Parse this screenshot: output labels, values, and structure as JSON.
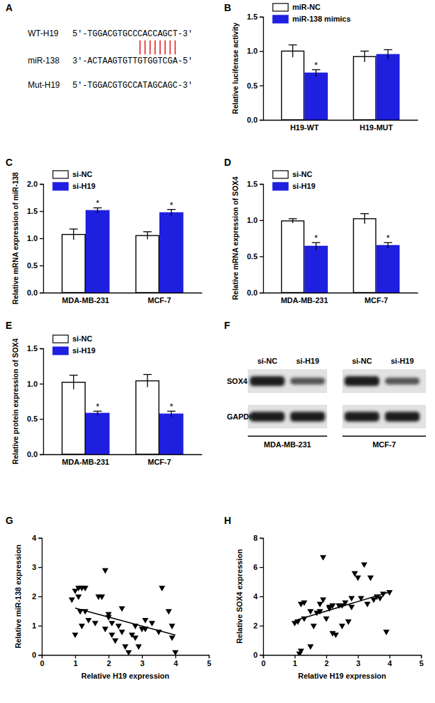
{
  "chart_data": [
    {
      "type": "sequence",
      "panel_label": "A",
      "rows": [
        {
          "name": "WT-H19",
          "sequence": "5'-TGGACGTGCCCACCAGCT-3'"
        },
        {
          "name": "miR-138",
          "sequence": "3'-ACTAAGTGTTGTGGTCGA-5'"
        },
        {
          "name": "Mut-H19",
          "sequence": "5'-TGGACGTGCCATAGCAGC-3'"
        }
      ],
      "seed_pairs": [
        10,
        11,
        12,
        13,
        14,
        15,
        16,
        17
      ],
      "color": "#e02020"
    },
    {
      "type": "bar",
      "panel_label": "B",
      "y_label": "Relative luciferase activity",
      "categories": [
        "H19-WT",
        "H19-MUT"
      ],
      "series": [
        {
          "name": "miR-NC",
          "color": "#ffffff",
          "values": [
            1.0,
            0.92
          ],
          "errors": [
            0.09,
            0.08
          ]
        },
        {
          "name": "miR-138 mimics",
          "color": "#1f1fe0",
          "values": [
            0.68,
            0.95
          ],
          "errors": [
            0.05,
            0.07
          ]
        }
      ],
      "annotations": [
        {
          "text": "*",
          "series": 1,
          "category": 0
        }
      ],
      "ylim": [
        0,
        1.5
      ],
      "yticks": [
        {
          "value": 0,
          "label": "0.0"
        },
        0.5,
        {
          "value": 1,
          "label": "1.0"
        },
        1.5
      ],
      "legend": "upper left"
    },
    {
      "type": "bar",
      "panel_label": "C",
      "y_label": "Relative mRNA expression of miR-138",
      "categories": [
        "MDA-MB-231",
        "MCF-7"
      ],
      "series": [
        {
          "name": "si-NC",
          "color": "#ffffff",
          "values": [
            1.07,
            1.05
          ],
          "errors": [
            0.1,
            0.07
          ]
        },
        {
          "name": "si-H19",
          "color": "#1f1fe0",
          "values": [
            1.51,
            1.47
          ],
          "errors": [
            0.05,
            0.06
          ]
        }
      ],
      "annotations": [
        {
          "text": "*",
          "series": 1,
          "category": 0
        },
        {
          "text": "*",
          "series": 1,
          "category": 1
        }
      ],
      "ylim": [
        0,
        2
      ],
      "yticks": [
        {
          "value": 0,
          "label": "0.0"
        },
        0.5,
        {
          "value": 1,
          "label": "1.0"
        },
        1.5,
        {
          "value": 2,
          "label": "2.0"
        }
      ],
      "legend": "upper left"
    },
    {
      "type": "bar",
      "panel_label": "D",
      "y_label": "Relative mRNA expression of SOX4",
      "categories": [
        "MDA-MB-231",
        "MCF-7"
      ],
      "series": [
        {
          "name": "si-NC",
          "color": "#ffffff",
          "values": [
            0.99,
            1.02
          ],
          "errors": [
            0.03,
            0.07
          ]
        },
        {
          "name": "si-H19",
          "color": "#1f1fe0",
          "values": [
            0.64,
            0.65
          ],
          "errors": [
            0.05,
            0.04
          ]
        }
      ],
      "annotations": [
        {
          "text": "*",
          "series": 1,
          "category": 0
        },
        {
          "text": "*",
          "series": 1,
          "category": 1
        }
      ],
      "ylim": [
        0,
        1.5
      ],
      "yticks": [
        {
          "value": 0,
          "label": "0.0"
        },
        0.5,
        {
          "value": 1,
          "label": "1.0"
        },
        1.5
      ],
      "legend": "upper left"
    },
    {
      "type": "bar",
      "panel_label": "E",
      "y_label": "Relative protein expression of SOX4",
      "categories": [
        "MDA-MB-231",
        "MCF-7"
      ],
      "series": [
        {
          "name": "si-NC",
          "color": "#ffffff",
          "values": [
            1.02,
            1.04
          ],
          "errors": [
            0.1,
            0.09
          ]
        },
        {
          "name": "si-H19",
          "color": "#1f1fe0",
          "values": [
            0.58,
            0.57
          ],
          "errors": [
            0.03,
            0.04
          ]
        }
      ],
      "annotations": [
        {
          "text": "*",
          "series": 1,
          "category": 0
        },
        {
          "text": "*",
          "series": 1,
          "category": 1
        }
      ],
      "ylim": [
        0,
        1.5
      ],
      "yticks": [
        {
          "value": 0,
          "label": "0.0"
        },
        0.5,
        {
          "value": 1,
          "label": "1.0"
        },
        1.5
      ],
      "legend": "upper left"
    },
    {
      "type": "blot",
      "panel_label": "F",
      "lanes": [
        "si-NC",
        "si-H19",
        "si-NC",
        "si-H19"
      ],
      "rows": [
        "SOX4",
        "GAPDH"
      ],
      "groups": [
        "MDA-MB-231",
        "MCF-7"
      ]
    },
    {
      "type": "scatter",
      "panel_label": "G",
      "x_label": "Relative H19 expression",
      "y_label": "Relative miR-138 expression",
      "series": [
        {
          "type": "scatter",
          "marker": "triangle-down",
          "color": "#000000",
          "x": [
            0.9,
            1.0,
            1.1,
            1.2,
            1.1,
            1.15,
            1.3,
            1.0,
            1.2,
            1.3,
            1.4,
            1.6,
            1.7,
            1.8,
            1.9,
            1.9,
            2.0,
            2.0,
            2.1,
            2.1,
            2.2,
            2.3,
            2.4,
            2.5,
            2.6,
            2.7,
            2.8,
            2.8,
            2.9,
            3.0,
            3.1,
            3.1,
            3.3,
            3.5,
            3.6,
            3.8,
            3.9,
            4.0,
            3.9,
            2.4
          ],
          "values": [
            1.9,
            2.2,
            2.3,
            2.3,
            2.0,
            1.5,
            1.5,
            0.7,
            1.0,
            2.3,
            1.2,
            1.1,
            2.0,
            2.0,
            2.9,
            0.9,
            1.4,
            1.3,
            0.7,
            1.1,
            0.5,
            1.0,
            0.8,
            0.3,
            0.1,
            0.7,
            1.0,
            0.6,
            0.3,
            0.9,
            0.9,
            1.2,
            1.1,
            0.8,
            2.3,
            1.5,
            1.0,
            0.1,
            0.6,
            1.6
          ]
        },
        {
          "type": "line",
          "line_style": "solid",
          "color": "#000000",
          "x": [
            1.0,
            4.0
          ],
          "values": [
            1.6,
            0.68
          ]
        }
      ],
      "xlim": [
        0,
        5
      ],
      "xticks": [
        0,
        1,
        2,
        3,
        4,
        5
      ],
      "ylim": [
        0,
        4
      ],
      "yticks": [
        0,
        1,
        2,
        3,
        4
      ]
    },
    {
      "type": "scatter",
      "panel_label": "H",
      "x_label": "Relative H19 expression",
      "y_label": "Relative SOX4 expression",
      "series": [
        {
          "type": "scatter",
          "marker": "triangle-down",
          "color": "#000000",
          "x": [
            1.0,
            1.1,
            1.15,
            1.2,
            1.2,
            1.3,
            1.3,
            1.5,
            1.5,
            1.6,
            1.7,
            1.8,
            1.9,
            1.9,
            2.0,
            2.1,
            2.2,
            2.2,
            2.3,
            2.4,
            2.5,
            2.5,
            2.6,
            2.7,
            2.8,
            2.8,
            2.9,
            3.0,
            3.1,
            3.2,
            3.3,
            3.4,
            3.5,
            3.6,
            3.7,
            3.8,
            3.9,
            4.0,
            2.1,
            1.8
          ],
          "values": [
            2.2,
            2.3,
            0.1,
            0.3,
            3.5,
            3.6,
            2.5,
            0.6,
            3.0,
            2.0,
            2.9,
            3.5,
            6.7,
            3.8,
            2.5,
            3.3,
            3.4,
            1.5,
            1.4,
            3.4,
            2.0,
            3.4,
            3.6,
            2.3,
            3.3,
            3.9,
            5.6,
            5.3,
            3.9,
            6.2,
            3.5,
            5.3,
            3.8,
            4.0,
            3.9,
            4.2,
            1.6,
            4.3,
            3.2,
            3.0
          ]
        },
        {
          "type": "line",
          "line_style": "solid",
          "color": "#000000",
          "x": [
            1.0,
            4.0
          ],
          "values": [
            2.35,
            4.3
          ]
        }
      ],
      "xlim": [
        0,
        5
      ],
      "xticks": [
        0,
        1,
        2,
        3,
        4,
        5
      ],
      "ylim": [
        0,
        8
      ],
      "yticks": [
        0,
        2,
        4,
        6,
        8
      ]
    }
  ]
}
